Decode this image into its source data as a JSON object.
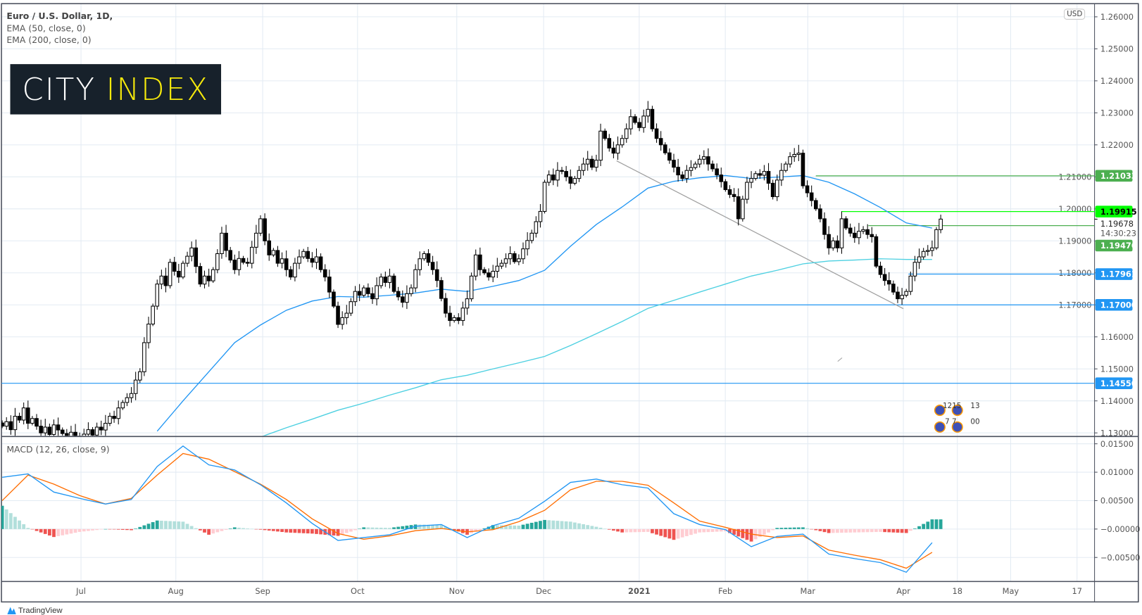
{
  "legend": {
    "title": "Euro / U.S. Dollar, 1D,",
    "ema50": "EMA (50, close, 0)",
    "ema200": "EMA (200, close, 0)",
    "macd": "MACD (12, 26, close, 9)"
  },
  "logo": {
    "word1": "CITY",
    "word2": "INDEX",
    "bg": "#17212b",
    "accent": "#f5e90c"
  },
  "currency_badge": "USD",
  "footer": "TradingView",
  "events": [
    "1215",
    "13",
    "7 7",
    "00"
  ],
  "chart_data": [
    {
      "type": "candlestick",
      "title": "Euro / U.S. Dollar, 1D",
      "x_tick_labels": [
        "Jul",
        "Aug",
        "Sep",
        "Oct",
        "Nov",
        "Dec",
        "2021",
        "Feb",
        "Mar",
        "Apr",
        "18",
        "May",
        "17"
      ],
      "y_tick_labels": [
        "1.26000",
        "1.25000",
        "1.24000",
        "1.23000",
        "1.22000",
        "1.21000",
        "1.20000",
        "1.19000",
        "1.18000",
        "1.17000",
        "1.16000",
        "1.15000",
        "1.14000",
        "1.13000"
      ],
      "ylim": [
        1.13,
        1.26
      ],
      "grid": true,
      "closes": [
        1.1321,
        1.1335,
        1.131,
        1.1352,
        1.134,
        1.1378,
        1.133,
        1.1345,
        1.1321,
        1.13,
        1.1318,
        1.1295,
        1.1325,
        1.1309,
        1.1298,
        1.1285,
        1.1302,
        1.129,
        1.1287,
        1.1296,
        1.131,
        1.1293,
        1.1318,
        1.1309,
        1.133,
        1.1352,
        1.1345,
        1.1378,
        1.1395,
        1.141,
        1.1423,
        1.1465,
        1.1491,
        1.1582,
        1.164,
        1.1696,
        1.1765,
        1.179,
        1.176,
        1.1833,
        1.1805,
        1.1787,
        1.183,
        1.1852,
        1.1878,
        1.182,
        1.1765,
        1.179,
        1.1775,
        1.181,
        1.186,
        1.1924,
        1.187,
        1.184,
        1.181,
        1.1845,
        1.1833,
        1.183,
        1.188,
        1.1924,
        1.1969,
        1.19,
        1.1856,
        1.187,
        1.183,
        1.1844,
        1.181,
        1.1787,
        1.183,
        1.185,
        1.1867,
        1.1845,
        1.1833,
        1.185,
        1.181,
        1.1787,
        1.174,
        1.1696,
        1.1639,
        1.166,
        1.1674,
        1.171,
        1.1742,
        1.173,
        1.1753,
        1.1735,
        1.1719,
        1.176,
        1.1787,
        1.177,
        1.179,
        1.1742,
        1.1725,
        1.1708,
        1.1735,
        1.1753,
        1.181,
        1.1844,
        1.186,
        1.1833,
        1.181,
        1.1776,
        1.172,
        1.1674,
        1.1651,
        1.166,
        1.1651,
        1.169,
        1.1719,
        1.179,
        1.1856,
        1.181,
        1.18,
        1.1787,
        1.1805,
        1.1821,
        1.183,
        1.1844,
        1.186,
        1.1835,
        1.1844,
        1.1875,
        1.1901,
        1.1924,
        1.196,
        1.1992,
        1.2083,
        1.2106,
        1.209,
        1.212,
        1.2117,
        1.21,
        1.208,
        1.2095,
        1.212,
        1.214,
        1.2155,
        1.213,
        1.2152,
        1.2243,
        1.222,
        1.219,
        1.2174,
        1.22,
        1.222,
        1.225,
        1.2288,
        1.227,
        1.2254,
        1.229,
        1.2311,
        1.225,
        1.222,
        1.22,
        1.2175,
        1.2152,
        1.213,
        1.2106,
        1.2095,
        1.212,
        1.2129,
        1.214,
        1.2155,
        1.2163,
        1.214,
        1.2125,
        1.2106,
        1.2085,
        1.206,
        1.2045,
        1.2038,
        1.1969,
        1.203,
        1.2083,
        1.2095,
        1.211,
        1.2105,
        1.2117,
        1.208,
        1.2038,
        1.209,
        1.212,
        1.214,
        1.2163,
        1.217,
        1.2174,
        1.2072,
        1.205,
        1.2026,
        1.2,
        1.1969,
        1.192,
        1.1878,
        1.19,
        1.1878,
        1.1969,
        1.194,
        1.1924,
        1.191,
        1.193,
        1.1935,
        1.192,
        1.1913,
        1.1821,
        1.1795,
        1.1776,
        1.1765,
        1.174,
        1.1719,
        1.173,
        1.1742,
        1.179,
        1.1833,
        1.185,
        1.1867,
        1.187,
        1.1878,
        1.1935,
        1.1968
      ],
      "indicators_sample_every_n_bars": 6,
      "ema50": [
        null,
        null,
        null,
        null,
        null,
        null,
        1.1305,
        1.14,
        1.1491,
        1.1582,
        1.1637,
        1.1683,
        1.1712,
        1.1726,
        1.1724,
        1.173,
        1.1737,
        1.1749,
        1.1742,
        1.1758,
        1.1776,
        1.1808,
        1.1883,
        1.1951,
        1.2006,
        1.2065,
        1.2086,
        1.2097,
        1.2104,
        1.2095,
        1.2099,
        1.2104,
        1.2083,
        1.2047,
        1.2004,
        1.1956,
        1.194
      ],
      "ema200": [
        null,
        null,
        null,
        null,
        null,
        null,
        null,
        null,
        null,
        null,
        1.1287,
        1.1316,
        1.1343,
        1.1371,
        1.1393,
        1.1418,
        1.1441,
        1.1466,
        1.148,
        1.15,
        1.1519,
        1.1539,
        1.1573,
        1.161,
        1.1648,
        1.1689,
        1.1714,
        1.174,
        1.1765,
        1.179,
        1.1808,
        1.1828,
        1.1837,
        1.184,
        1.1844,
        1.1842,
        1.1842
      ],
      "ema50_color": "#2196f3",
      "ema200_color": "#4dd0e1",
      "last_price": "1.19678",
      "countdown": "14:30:23",
      "levels": [
        {
          "label": "1.21033",
          "value": 1.21033,
          "color": "#4caf50",
          "text_color": "#ffffff"
        },
        {
          "label": "1.19915",
          "value": 1.19915,
          "color": "#00ff00",
          "text_color": "#000000"
        },
        {
          "label": "1.19476",
          "value": 1.19476,
          "color": "#4caf50",
          "text_color": "#ffffff"
        },
        {
          "label": "1.17961",
          "value": 1.17961,
          "color": "#2196f3",
          "text_color": "#ffffff"
        },
        {
          "label": "1.17000",
          "value": 1.17,
          "color": "#2196f3",
          "text_color": "#ffffff"
        },
        {
          "label": "1.14550",
          "value": 1.1455,
          "color": "#2196f3",
          "text_color": "#ffffff"
        }
      ],
      "trendline": {
        "from": 1.215,
        "to": 1.1688,
        "color": "#9e9e9e"
      }
    },
    {
      "type": "macd",
      "title": "MACD (12, 26, close, 9)",
      "y_tick_labels": [
        "0.01500",
        "0.01000",
        "0.00500",
        "−0.00000",
        "−0.00500"
      ],
      "ylim": [
        -0.009,
        0.0165
      ],
      "sample_every_n_bars": 6,
      "macd": [
        0.0091,
        0.0097,
        0.0065,
        0.0054,
        0.0044,
        0.0052,
        0.011,
        0.0146,
        0.0113,
        0.0104,
        0.0078,
        0.0046,
        0.001,
        -0.002,
        -0.0015,
        -0.001,
        0.0005,
        0.0008,
        -0.0015,
        0.0006,
        0.0019,
        0.0049,
        0.0082,
        0.0088,
        0.0078,
        0.0072,
        0.0027,
        0.0008,
        -0.0001,
        -0.0031,
        -0.0013,
        -0.0009,
        -0.0044,
        -0.0052,
        -0.0059,
        -0.0076,
        -0.0024
      ],
      "signal": [
        0.005,
        0.0095,
        0.0079,
        0.0059,
        0.0044,
        0.0054,
        0.0095,
        0.0133,
        0.0123,
        0.0101,
        0.0079,
        0.0052,
        0.0018,
        -0.0008,
        -0.0018,
        -0.0012,
        -0.0003,
        0.0001,
        -0.0005,
        -0.0001,
        0.0013,
        0.0033,
        0.0069,
        0.0084,
        0.0084,
        0.0077,
        0.0046,
        0.0014,
        0.0003,
        -0.0009,
        -0.0015,
        -0.0012,
        -0.0037,
        -0.0046,
        -0.0054,
        -0.0069,
        -0.0041
      ],
      "macd_color": "#2196f3",
      "signal_color": "#ff6d00",
      "hist_colors": {
        "pos_up": "#26a69a",
        "pos_down": "#b2dfdb",
        "neg_down": "#ef5350",
        "neg_up": "#ffcdd2"
      }
    }
  ]
}
